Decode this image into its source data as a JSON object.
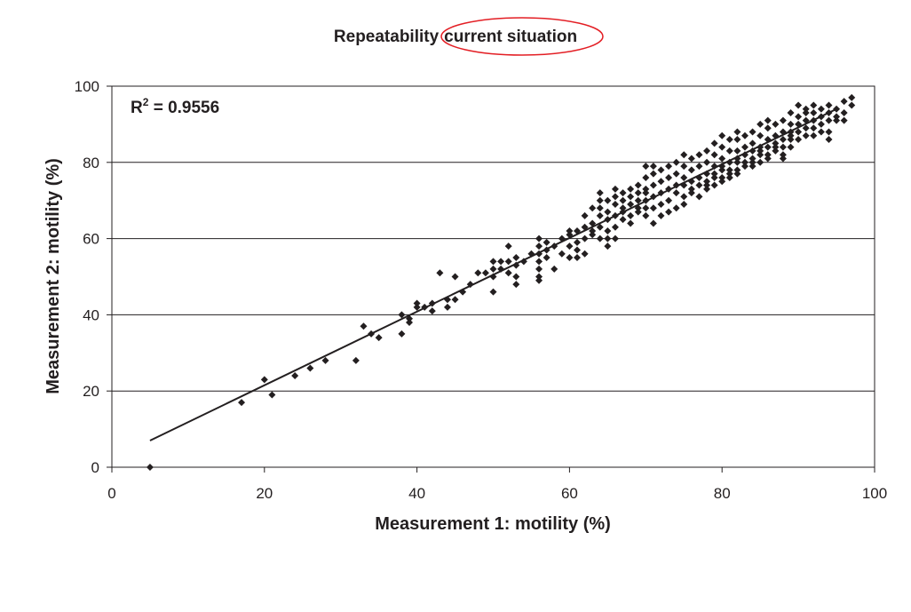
{
  "chart_data": {
    "type": "scatter",
    "title_part1": "Repeatability",
    "title_part2": "current situation",
    "xlabel": "Measurement 1: motility (%)",
    "ylabel": "Measurement 2: motility (%)",
    "xlim": [
      0,
      100
    ],
    "ylim": [
      0,
      100
    ],
    "xticks": [
      "0",
      "20",
      "40",
      "60",
      "80",
      "100"
    ],
    "yticks": [
      "0",
      "20",
      "40",
      "60",
      "80",
      "100"
    ],
    "grid": "horizontal",
    "annotation": {
      "prefix": "R",
      "sup": "2",
      "suffix": " = 0.9556"
    },
    "highlight_color": "#e31e24",
    "marker_color": "#231f20",
    "trendline": {
      "x": [
        5,
        95
      ],
      "y": [
        7,
        94
      ]
    },
    "points": [
      [
        5,
        0
      ],
      [
        17,
        17
      ],
      [
        20,
        23
      ],
      [
        21,
        19
      ],
      [
        24,
        24
      ],
      [
        26,
        26
      ],
      [
        28,
        28
      ],
      [
        32,
        28
      ],
      [
        33,
        37
      ],
      [
        34,
        35
      ],
      [
        35,
        34
      ],
      [
        38,
        35
      ],
      [
        38,
        40
      ],
      [
        39,
        38
      ],
      [
        39,
        39
      ],
      [
        40,
        42
      ],
      [
        40,
        43
      ],
      [
        41,
        42
      ],
      [
        42,
        43
      ],
      [
        42,
        41
      ],
      [
        43,
        51
      ],
      [
        44,
        42
      ],
      [
        44,
        44
      ],
      [
        45,
        44
      ],
      [
        45,
        50
      ],
      [
        46,
        46
      ],
      [
        47,
        48
      ],
      [
        48,
        51
      ],
      [
        49,
        51
      ],
      [
        50,
        52
      ],
      [
        50,
        46
      ],
      [
        50,
        50
      ],
      [
        50,
        54
      ],
      [
        51,
        52
      ],
      [
        51,
        54
      ],
      [
        52,
        54
      ],
      [
        52,
        58
      ],
      [
        52,
        51
      ],
      [
        53,
        50
      ],
      [
        53,
        53
      ],
      [
        53,
        55
      ],
      [
        53,
        48
      ],
      [
        54,
        54
      ],
      [
        55,
        56
      ],
      [
        56,
        60
      ],
      [
        56,
        58
      ],
      [
        56,
        56
      ],
      [
        56,
        54
      ],
      [
        56,
        52
      ],
      [
        56,
        50
      ],
      [
        56,
        49
      ],
      [
        57,
        55
      ],
      [
        57,
        57
      ],
      [
        57,
        59
      ],
      [
        58,
        58
      ],
      [
        58,
        52
      ],
      [
        59,
        56
      ],
      [
        59,
        60
      ],
      [
        60,
        55
      ],
      [
        60,
        58
      ],
      [
        60,
        61
      ],
      [
        60,
        62
      ],
      [
        61,
        59
      ],
      [
        61,
        62
      ],
      [
        61,
        57
      ],
      [
        61,
        55
      ],
      [
        62,
        60
      ],
      [
        62,
        63
      ],
      [
        62,
        66
      ],
      [
        62,
        56
      ],
      [
        63,
        61
      ],
      [
        63,
        64
      ],
      [
        63,
        68
      ],
      [
        63,
        62
      ],
      [
        64,
        60
      ],
      [
        64,
        63
      ],
      [
        64,
        66
      ],
      [
        64,
        68
      ],
      [
        64,
        70
      ],
      [
        64,
        72
      ],
      [
        65,
        62
      ],
      [
        65,
        65
      ],
      [
        65,
        67
      ],
      [
        65,
        70
      ],
      [
        65,
        60
      ],
      [
        65,
        58
      ],
      [
        66,
        63
      ],
      [
        66,
        66
      ],
      [
        66,
        69
      ],
      [
        66,
        71
      ],
      [
        66,
        73
      ],
      [
        66,
        60
      ],
      [
        67,
        65
      ],
      [
        67,
        67
      ],
      [
        67,
        70
      ],
      [
        67,
        72
      ],
      [
        67,
        68
      ],
      [
        68,
        66
      ],
      [
        68,
        69
      ],
      [
        68,
        71
      ],
      [
        68,
        73
      ],
      [
        68,
        64
      ],
      [
        69,
        67
      ],
      [
        69,
        70
      ],
      [
        69,
        72
      ],
      [
        69,
        74
      ],
      [
        69,
        68
      ],
      [
        70,
        66
      ],
      [
        70,
        70
      ],
      [
        70,
        73
      ],
      [
        70,
        76
      ],
      [
        70,
        79
      ],
      [
        70,
        72
      ],
      [
        70,
        68
      ],
      [
        71,
        68
      ],
      [
        71,
        71
      ],
      [
        71,
        74
      ],
      [
        71,
        77
      ],
      [
        71,
        79
      ],
      [
        71,
        64
      ],
      [
        72,
        69
      ],
      [
        72,
        72
      ],
      [
        72,
        75
      ],
      [
        72,
        78
      ],
      [
        72,
        66
      ],
      [
        73,
        70
      ],
      [
        73,
        73
      ],
      [
        73,
        76
      ],
      [
        73,
        79
      ],
      [
        73,
        67
      ],
      [
        74,
        72
      ],
      [
        74,
        74
      ],
      [
        74,
        77
      ],
      [
        74,
        80
      ],
      [
        74,
        68
      ],
      [
        75,
        71
      ],
      [
        75,
        74
      ],
      [
        75,
        76
      ],
      [
        75,
        79
      ],
      [
        75,
        82
      ],
      [
        75,
        69
      ],
      [
        76,
        73
      ],
      [
        76,
        75
      ],
      [
        76,
        78
      ],
      [
        76,
        81
      ],
      [
        76,
        72
      ],
      [
        77,
        74
      ],
      [
        77,
        76
      ],
      [
        77,
        79
      ],
      [
        77,
        82
      ],
      [
        77,
        71
      ],
      [
        78,
        74
      ],
      [
        78,
        77
      ],
      [
        78,
        80
      ],
      [
        78,
        83
      ],
      [
        78,
        75
      ],
      [
        78,
        73
      ],
      [
        79,
        76
      ],
      [
        79,
        79
      ],
      [
        79,
        82
      ],
      [
        79,
        85
      ],
      [
        79,
        77
      ],
      [
        79,
        74
      ],
      [
        80,
        76
      ],
      [
        80,
        78
      ],
      [
        80,
        81
      ],
      [
        80,
        84
      ],
      [
        80,
        87
      ],
      [
        80,
        79
      ],
      [
        80,
        75
      ],
      [
        81,
        77
      ],
      [
        81,
        80
      ],
      [
        81,
        83
      ],
      [
        81,
        86
      ],
      [
        81,
        78
      ],
      [
        81,
        76
      ],
      [
        82,
        77
      ],
      [
        82,
        80
      ],
      [
        82,
        83
      ],
      [
        82,
        86
      ],
      [
        82,
        88
      ],
      [
        82,
        81
      ],
      [
        82,
        78
      ],
      [
        83,
        79
      ],
      [
        83,
        82
      ],
      [
        83,
        84
      ],
      [
        83,
        87
      ],
      [
        83,
        80
      ],
      [
        84,
        80
      ],
      [
        84,
        83
      ],
      [
        84,
        85
      ],
      [
        84,
        88
      ],
      [
        84,
        81
      ],
      [
        84,
        79
      ],
      [
        85,
        80
      ],
      [
        85,
        82
      ],
      [
        85,
        84
      ],
      [
        85,
        87
      ],
      [
        85,
        90
      ],
      [
        85,
        83
      ],
      [
        86,
        81
      ],
      [
        86,
        84
      ],
      [
        86,
        86
      ],
      [
        86,
        89
      ],
      [
        86,
        91
      ],
      [
        86,
        82
      ],
      [
        87,
        83
      ],
      [
        87,
        85
      ],
      [
        87,
        87
      ],
      [
        87,
        90
      ],
      [
        87,
        84
      ],
      [
        88,
        82
      ],
      [
        88,
        84
      ],
      [
        88,
        86
      ],
      [
        88,
        88
      ],
      [
        88,
        91
      ],
      [
        88,
        81
      ],
      [
        89,
        84
      ],
      [
        89,
        86
      ],
      [
        89,
        88
      ],
      [
        89,
        90
      ],
      [
        89,
        93
      ],
      [
        89,
        87
      ],
      [
        90,
        88
      ],
      [
        90,
        90
      ],
      [
        90,
        92
      ],
      [
        90,
        95
      ],
      [
        90,
        86
      ],
      [
        91,
        87
      ],
      [
        91,
        89
      ],
      [
        91,
        91
      ],
      [
        91,
        93
      ],
      [
        91,
        94
      ],
      [
        92,
        89
      ],
      [
        92,
        91
      ],
      [
        92,
        93
      ],
      [
        92,
        95
      ],
      [
        92,
        87
      ],
      [
        93,
        90
      ],
      [
        93,
        92
      ],
      [
        93,
        94
      ],
      [
        93,
        88
      ],
      [
        94,
        91
      ],
      [
        94,
        93
      ],
      [
        94,
        95
      ],
      [
        94,
        86
      ],
      [
        94,
        88
      ],
      [
        95,
        92
      ],
      [
        95,
        94
      ],
      [
        95,
        91
      ],
      [
        96,
        93
      ],
      [
        96,
        96
      ],
      [
        96,
        91
      ],
      [
        97,
        97
      ],
      [
        97,
        95
      ]
    ]
  }
}
